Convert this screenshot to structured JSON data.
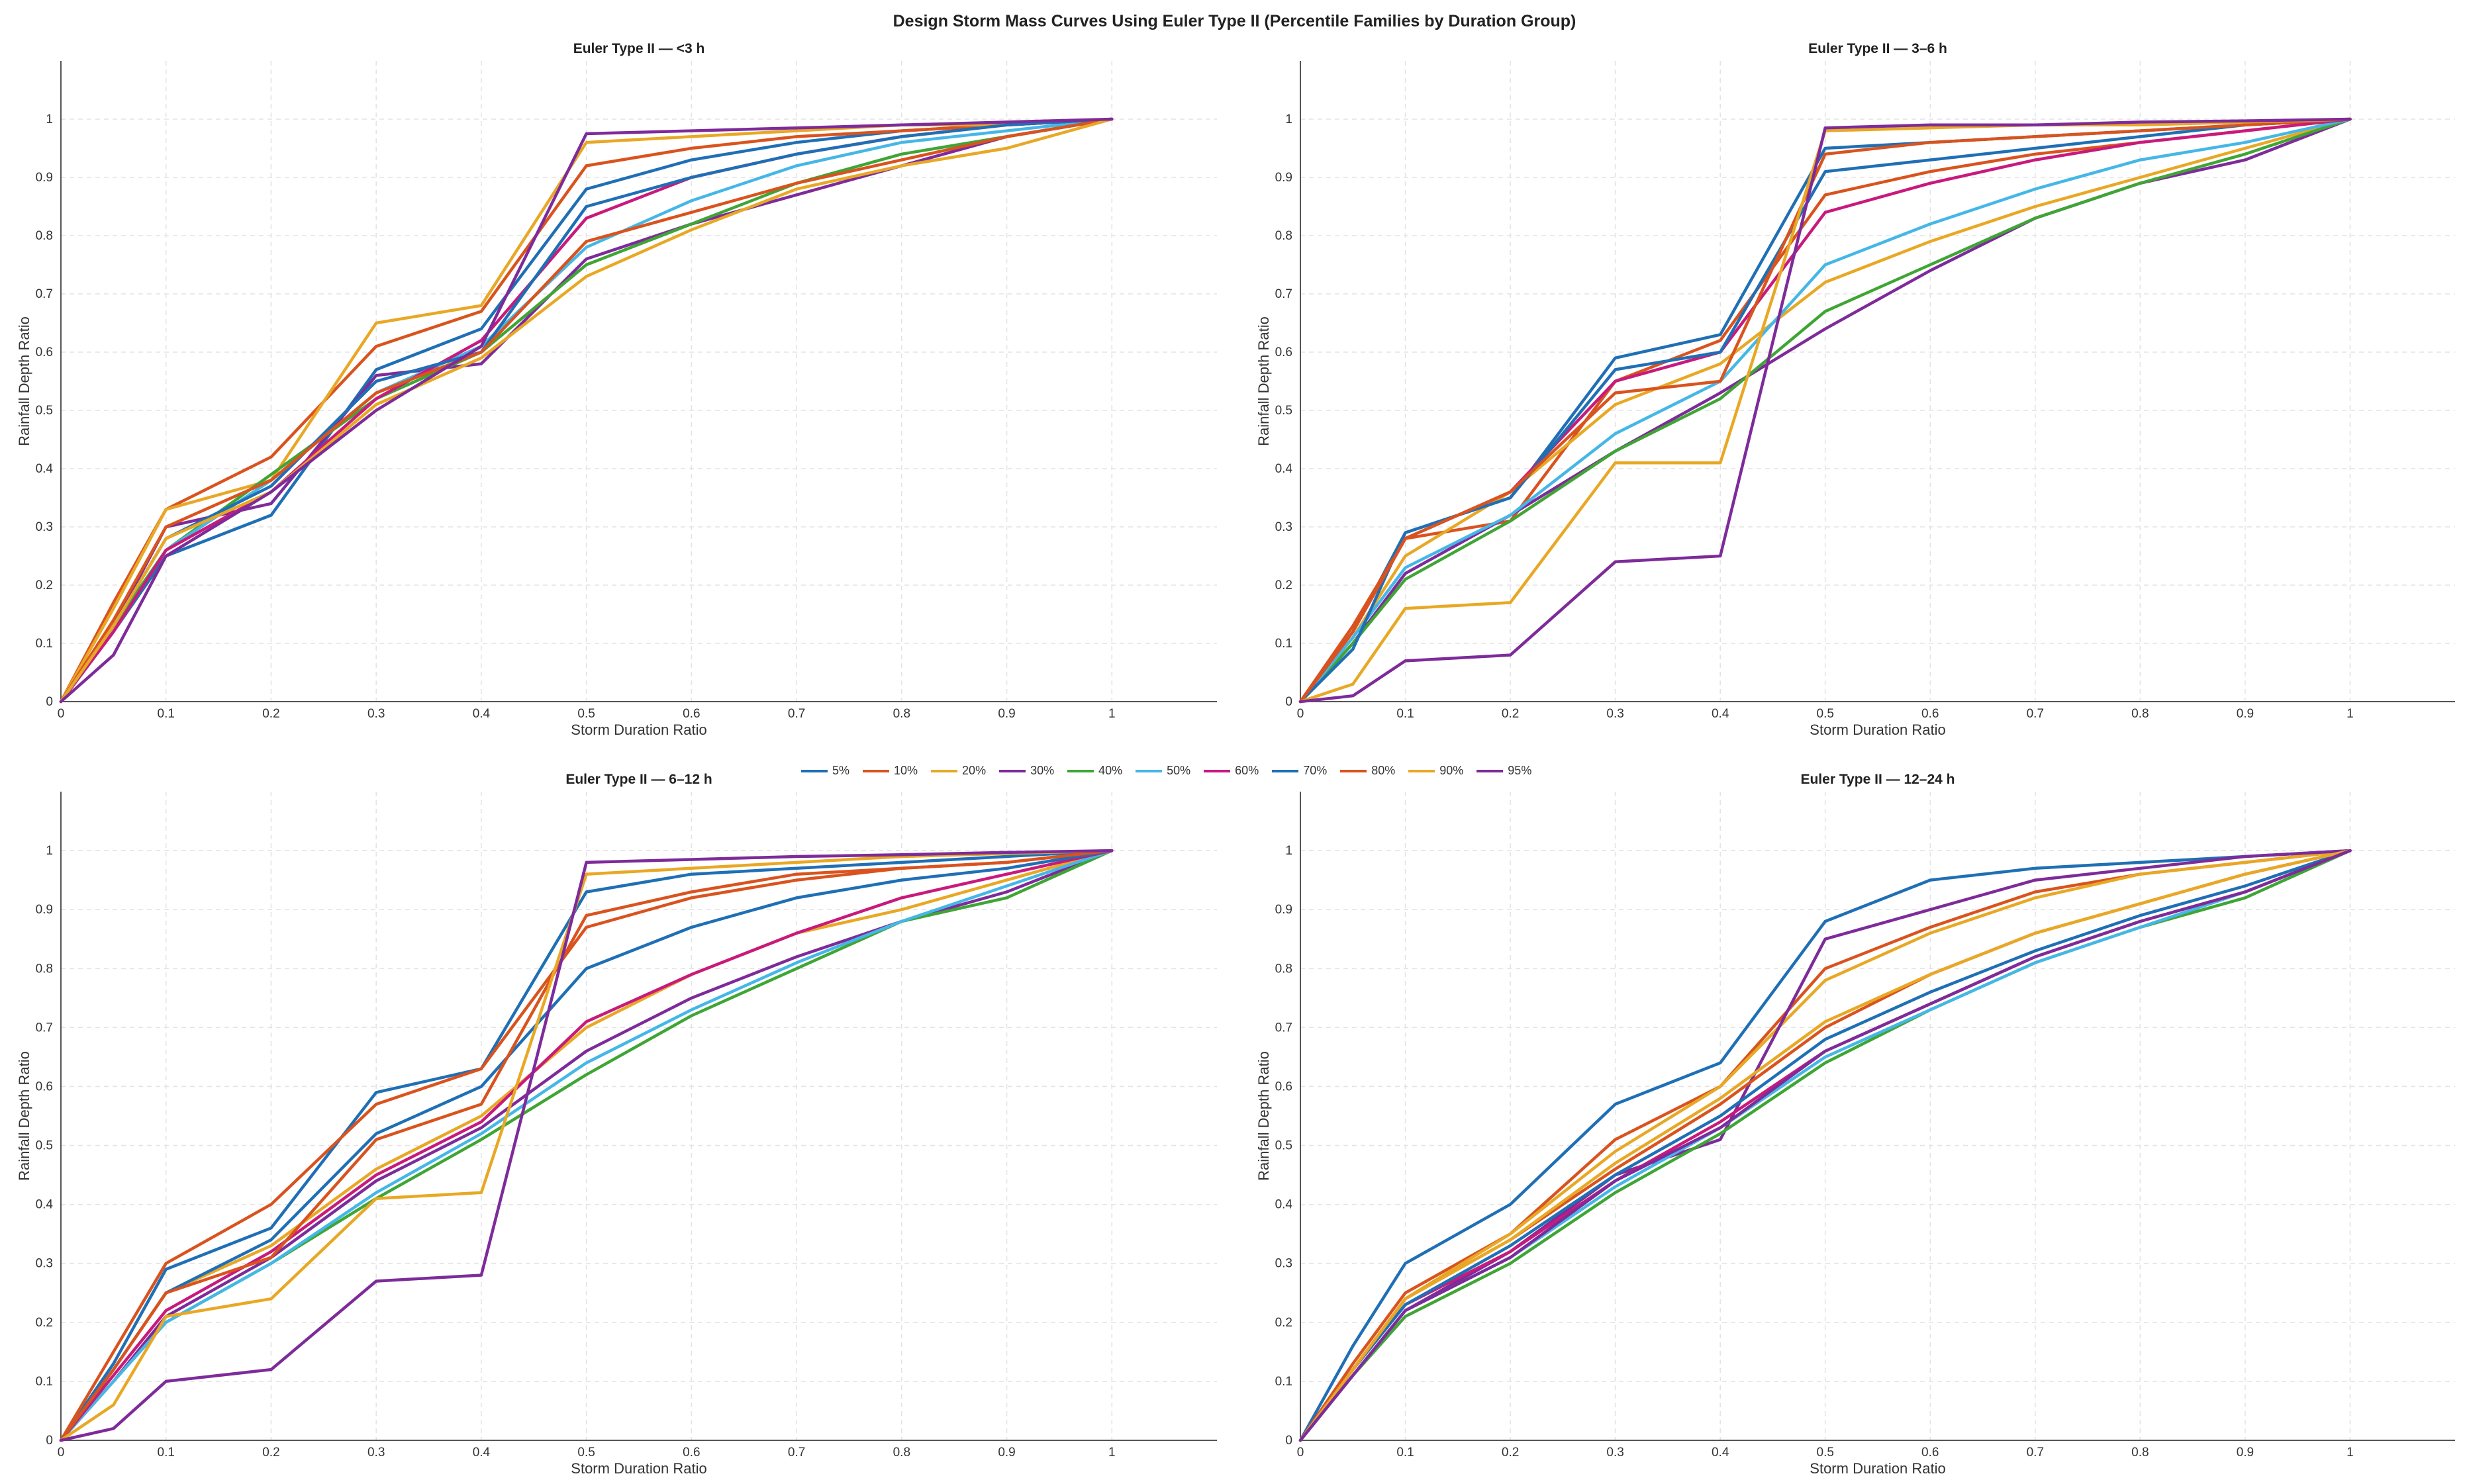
{
  "figure_title": "Design Storm Mass Curves Using Euler Type II (Percentile Families by Duration Group)",
  "series_colors": [
    "#1f6fb5",
    "#d9531e",
    "#e8a825",
    "#7e2b9a",
    "#3fa535",
    "#45b7e6",
    "#c81a7c",
    "#1f6fb5",
    "#d9531e",
    "#e8a825",
    "#7e2b9a"
  ],
  "chart_data": [
    {
      "type": "line",
      "title": "Euler Type II — <3 h",
      "xlabel": "Storm Duration Ratio",
      "ylabel": "Rainfall Depth Ratio",
      "xlim": [
        0,
        1.1
      ],
      "ylim": [
        0,
        1.1
      ],
      "xticks": [
        0,
        0.1,
        0.2,
        0.3,
        0.4,
        0.5,
        0.6,
        0.7,
        0.8,
        0.9,
        1
      ],
      "yticks": [
        0,
        0.1,
        0.2,
        0.3,
        0.4,
        0.5,
        0.6,
        0.7,
        0.8,
        0.9,
        1
      ],
      "grid": true,
      "x": [
        0,
        0.05,
        0.1,
        0.2,
        0.3,
        0.4,
        0.5,
        0.6,
        0.7,
        0.8,
        0.9,
        1
      ],
      "series": [
        {
          "name": "5%",
          "values": [
            0,
            0.12,
            0.25,
            0.32,
            0.57,
            0.64,
            0.88,
            0.93,
            0.96,
            0.98,
            0.99,
            1
          ]
        },
        {
          "name": "10%",
          "values": [
            0,
            0.17,
            0.33,
            0.42,
            0.61,
            0.67,
            0.92,
            0.95,
            0.97,
            0.98,
            0.99,
            1
          ]
        },
        {
          "name": "20%",
          "values": [
            0,
            0.16,
            0.33,
            0.38,
            0.65,
            0.68,
            0.96,
            0.97,
            0.98,
            0.99,
            0.99,
            1
          ]
        },
        {
          "name": "30%",
          "values": [
            0,
            0.13,
            0.3,
            0.34,
            0.56,
            0.58,
            0.76,
            0.82,
            0.87,
            0.92,
            0.97,
            1
          ]
        },
        {
          "name": "40%",
          "values": [
            0,
            0.13,
            0.26,
            0.39,
            0.52,
            0.6,
            0.75,
            0.82,
            0.89,
            0.94,
            0.97,
            1
          ]
        },
        {
          "name": "50%",
          "values": [
            0,
            0.12,
            0.26,
            0.38,
            0.53,
            0.61,
            0.78,
            0.86,
            0.92,
            0.96,
            0.98,
            1
          ]
        },
        {
          "name": "60%",
          "values": [
            0,
            0.12,
            0.26,
            0.36,
            0.52,
            0.62,
            0.83,
            0.9,
            0.94,
            0.97,
            0.99,
            1
          ]
        },
        {
          "name": "70%",
          "values": [
            0,
            0.13,
            0.28,
            0.37,
            0.55,
            0.6,
            0.85,
            0.9,
            0.94,
            0.97,
            0.99,
            1
          ]
        },
        {
          "name": "80%",
          "values": [
            0,
            0.14,
            0.3,
            0.38,
            0.53,
            0.6,
            0.79,
            0.84,
            0.89,
            0.93,
            0.97,
            1
          ]
        },
        {
          "name": "90%",
          "values": [
            0,
            0.13,
            0.28,
            0.36,
            0.51,
            0.59,
            0.73,
            0.81,
            0.88,
            0.92,
            0.95,
            1
          ]
        },
        {
          "name": "95%",
          "values": [
            0,
            0.08,
            0.25,
            0.36,
            0.5,
            0.61,
            0.975,
            0.98,
            0.985,
            0.99,
            0.995,
            1
          ]
        }
      ]
    },
    {
      "type": "line",
      "title": "Euler Type II — 3–6 h",
      "xlabel": "Storm Duration Ratio",
      "ylabel": "Rainfall Depth Ratio",
      "xlim": [
        0,
        1.1
      ],
      "ylim": [
        0,
        1.1
      ],
      "xticks": [
        0,
        0.1,
        0.2,
        0.3,
        0.4,
        0.5,
        0.6,
        0.7,
        0.8,
        0.9,
        1
      ],
      "yticks": [
        0,
        0.1,
        0.2,
        0.3,
        0.4,
        0.5,
        0.6,
        0.7,
        0.8,
        0.9,
        1
      ],
      "grid": true,
      "x": [
        0,
        0.05,
        0.1,
        0.2,
        0.3,
        0.4,
        0.5,
        0.6,
        0.7,
        0.8,
        0.9,
        1
      ],
      "series": [
        {
          "name": "5%",
          "values": [
            0,
            0.12,
            0.29,
            0.35,
            0.59,
            0.63,
            0.95,
            0.96,
            0.97,
            0.98,
            0.99,
            1
          ]
        },
        {
          "name": "10%",
          "values": [
            0,
            0.13,
            0.28,
            0.31,
            0.55,
            0.62,
            0.87,
            0.91,
            0.94,
            0.96,
            0.98,
            1
          ]
        },
        {
          "name": "20%",
          "values": [
            0,
            0.11,
            0.25,
            0.36,
            0.51,
            0.58,
            0.72,
            0.79,
            0.85,
            0.9,
            0.95,
            1
          ]
        },
        {
          "name": "30%",
          "values": [
            0,
            0.1,
            0.22,
            0.32,
            0.43,
            0.53,
            0.64,
            0.74,
            0.83,
            0.89,
            0.93,
            1
          ]
        },
        {
          "name": "40%",
          "values": [
            0,
            0.1,
            0.21,
            0.31,
            0.43,
            0.52,
            0.67,
            0.75,
            0.83,
            0.89,
            0.94,
            1
          ]
        },
        {
          "name": "50%",
          "values": [
            0,
            0.11,
            0.23,
            0.32,
            0.46,
            0.55,
            0.75,
            0.82,
            0.88,
            0.93,
            0.96,
            1
          ]
        },
        {
          "name": "60%",
          "values": [
            0,
            0.12,
            0.28,
            0.36,
            0.55,
            0.6,
            0.84,
            0.89,
            0.93,
            0.96,
            0.98,
            1
          ]
        },
        {
          "name": "70%",
          "values": [
            0,
            0.09,
            0.29,
            0.35,
            0.57,
            0.6,
            0.91,
            0.93,
            0.95,
            0.97,
            0.99,
            1
          ]
        },
        {
          "name": "80%",
          "values": [
            0,
            0.12,
            0.28,
            0.36,
            0.53,
            0.55,
            0.94,
            0.96,
            0.97,
            0.98,
            0.99,
            1
          ]
        },
        {
          "name": "90%",
          "values": [
            0,
            0.03,
            0.16,
            0.17,
            0.41,
            0.41,
            0.98,
            0.985,
            0.99,
            0.99,
            0.995,
            1
          ]
        },
        {
          "name": "95%",
          "values": [
            0,
            0.01,
            0.07,
            0.08,
            0.24,
            0.25,
            0.985,
            0.99,
            0.99,
            0.995,
            0.997,
            1
          ]
        }
      ]
    },
    {
      "type": "line",
      "title": "Euler Type II — 6–12 h",
      "xlabel": "Storm Duration Ratio",
      "ylabel": "Rainfall Depth Ratio",
      "xlim": [
        0,
        1.1
      ],
      "ylim": [
        0,
        1.1
      ],
      "xticks": [
        0,
        0.1,
        0.2,
        0.3,
        0.4,
        0.5,
        0.6,
        0.7,
        0.8,
        0.9,
        1
      ],
      "yticks": [
        0,
        0.1,
        0.2,
        0.3,
        0.4,
        0.5,
        0.6,
        0.7,
        0.8,
        0.9,
        1
      ],
      "grid": true,
      "x": [
        0,
        0.05,
        0.1,
        0.2,
        0.3,
        0.4,
        0.5,
        0.6,
        0.7,
        0.8,
        0.9,
        1
      ],
      "series": [
        {
          "name": "5%",
          "values": [
            0,
            0.13,
            0.29,
            0.36,
            0.59,
            0.63,
            0.93,
            0.96,
            0.97,
            0.98,
            0.99,
            1
          ]
        },
        {
          "name": "10%",
          "values": [
            0,
            0.15,
            0.3,
            0.4,
            0.57,
            0.63,
            0.87,
            0.92,
            0.95,
            0.97,
            0.98,
            1
          ]
        },
        {
          "name": "20%",
          "values": [
            0,
            0.12,
            0.25,
            0.33,
            0.46,
            0.55,
            0.7,
            0.79,
            0.86,
            0.9,
            0.95,
            1
          ]
        },
        {
          "name": "30%",
          "values": [
            0,
            0.1,
            0.21,
            0.31,
            0.44,
            0.53,
            0.66,
            0.75,
            0.82,
            0.88,
            0.93,
            1
          ]
        },
        {
          "name": "40%",
          "values": [
            0,
            0.1,
            0.2,
            0.3,
            0.41,
            0.51,
            0.62,
            0.72,
            0.8,
            0.88,
            0.92,
            1
          ]
        },
        {
          "name": "50%",
          "values": [
            0,
            0.1,
            0.2,
            0.3,
            0.42,
            0.52,
            0.64,
            0.73,
            0.81,
            0.88,
            0.94,
            1
          ]
        },
        {
          "name": "60%",
          "values": [
            0,
            0.11,
            0.22,
            0.32,
            0.45,
            0.54,
            0.71,
            0.79,
            0.86,
            0.92,
            0.96,
            1
          ]
        },
        {
          "name": "70%",
          "values": [
            0,
            0.12,
            0.25,
            0.34,
            0.52,
            0.6,
            0.8,
            0.87,
            0.92,
            0.95,
            0.97,
            1
          ]
        },
        {
          "name": "80%",
          "values": [
            0,
            0.12,
            0.25,
            0.31,
            0.51,
            0.57,
            0.89,
            0.93,
            0.96,
            0.97,
            0.98,
            1
          ]
        },
        {
          "name": "90%",
          "values": [
            0,
            0.06,
            0.21,
            0.24,
            0.41,
            0.42,
            0.96,
            0.97,
            0.98,
            0.99,
            0.995,
            1
          ]
        },
        {
          "name": "95%",
          "values": [
            0,
            0.02,
            0.1,
            0.12,
            0.27,
            0.28,
            0.98,
            0.985,
            0.99,
            0.993,
            0.997,
            1
          ]
        }
      ]
    },
    {
      "type": "line",
      "title": "Euler Type II — 12–24 h",
      "xlabel": "Storm Duration Ratio",
      "ylabel": "Rainfall Depth Ratio",
      "xlim": [
        0,
        1.1
      ],
      "ylim": [
        0,
        1.1
      ],
      "xticks": [
        0,
        0.1,
        0.2,
        0.3,
        0.4,
        0.5,
        0.6,
        0.7,
        0.8,
        0.9,
        1
      ],
      "yticks": [
        0,
        0.1,
        0.2,
        0.3,
        0.4,
        0.5,
        0.6,
        0.7,
        0.8,
        0.9,
        1
      ],
      "grid": true,
      "x": [
        0,
        0.05,
        0.1,
        0.2,
        0.3,
        0.4,
        0.5,
        0.6,
        0.7,
        0.8,
        0.9,
        1
      ],
      "series": [
        {
          "name": "5%",
          "values": [
            0,
            0.16,
            0.3,
            0.4,
            0.57,
            0.64,
            0.88,
            0.95,
            0.97,
            0.98,
            0.99,
            1
          ]
        },
        {
          "name": "10%",
          "values": [
            0,
            0.13,
            0.25,
            0.35,
            0.51,
            0.6,
            0.8,
            0.87,
            0.93,
            0.96,
            0.98,
            1
          ]
        },
        {
          "name": "20%",
          "values": [
            0,
            0.12,
            0.24,
            0.35,
            0.49,
            0.6,
            0.78,
            0.86,
            0.92,
            0.96,
            0.98,
            1
          ]
        },
        {
          "name": "30%",
          "values": [
            0,
            0.11,
            0.22,
            0.32,
            0.45,
            0.51,
            0.85,
            0.9,
            0.95,
            0.97,
            0.99,
            1
          ]
        },
        {
          "name": "40%",
          "values": [
            0,
            0.11,
            0.21,
            0.3,
            0.42,
            0.52,
            0.64,
            0.73,
            0.81,
            0.87,
            0.92,
            1
          ]
        },
        {
          "name": "50%",
          "values": [
            0,
            0.11,
            0.22,
            0.31,
            0.43,
            0.53,
            0.65,
            0.73,
            0.81,
            0.87,
            0.93,
            1
          ]
        },
        {
          "name": "60%",
          "values": [
            0,
            0.12,
            0.23,
            0.32,
            0.44,
            0.54,
            0.66,
            0.74,
            0.82,
            0.88,
            0.93,
            1
          ]
        },
        {
          "name": "70%",
          "values": [
            0,
            0.12,
            0.23,
            0.33,
            0.45,
            0.55,
            0.68,
            0.76,
            0.83,
            0.89,
            0.94,
            1
          ]
        },
        {
          "name": "80%",
          "values": [
            0,
            0.12,
            0.24,
            0.34,
            0.46,
            0.57,
            0.7,
            0.79,
            0.86,
            0.91,
            0.96,
            1
          ]
        },
        {
          "name": "90%",
          "values": [
            0,
            0.12,
            0.24,
            0.34,
            0.47,
            0.58,
            0.71,
            0.79,
            0.86,
            0.91,
            0.96,
            1
          ]
        },
        {
          "name": "95%",
          "values": [
            0,
            0.11,
            0.22,
            0.31,
            0.44,
            0.53,
            0.66,
            0.74,
            0.82,
            0.88,
            0.93,
            1
          ]
        }
      ]
    }
  ]
}
